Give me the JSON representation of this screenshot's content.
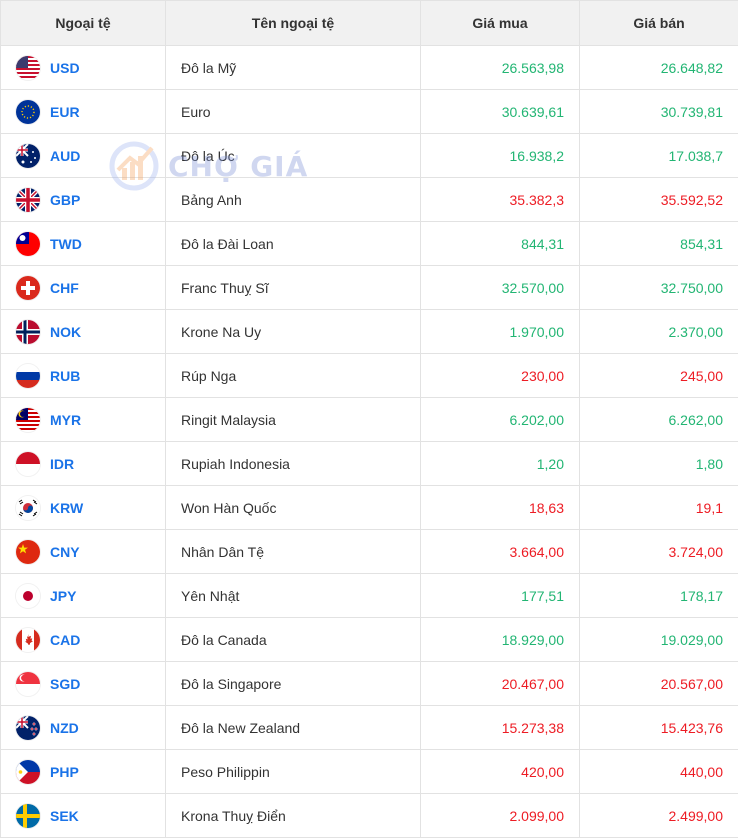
{
  "headers": {
    "code": "Ngoại tệ",
    "name": "Tên ngoại tệ",
    "buy": "Giá mua",
    "sell": "Giá bán"
  },
  "watermark": {
    "text": "CHỢ GIÁ"
  },
  "colors": {
    "up": "#22b573",
    "down": "#ed1c24",
    "link": "#1a73e8"
  },
  "rows": [
    {
      "code": "USD",
      "name": "Đô la Mỹ",
      "buy": "26.563,98",
      "sell": "26.648,82",
      "trend": "up",
      "flag": "us-flag-icon"
    },
    {
      "code": "EUR",
      "name": "Euro",
      "buy": "30.639,61",
      "sell": "30.739,81",
      "trend": "up",
      "flag": "eu-flag-icon"
    },
    {
      "code": "AUD",
      "name": "Đô la Úc",
      "buy": "16.938,2",
      "sell": "17.038,7",
      "trend": "up",
      "flag": "au-flag-icon"
    },
    {
      "code": "GBP",
      "name": "Bảng Anh",
      "buy": "35.382,3",
      "sell": "35.592,52",
      "trend": "down",
      "flag": "gb-flag-icon"
    },
    {
      "code": "TWD",
      "name": "Đô la Đài Loan",
      "buy": "844,31",
      "sell": "854,31",
      "trend": "up",
      "flag": "tw-flag-icon"
    },
    {
      "code": "CHF",
      "name": "Franc Thuỵ Sĩ",
      "buy": "32.570,00",
      "sell": "32.750,00",
      "trend": "up",
      "flag": "ch-flag-icon"
    },
    {
      "code": "NOK",
      "name": "Krone Na Uy",
      "buy": "1.970,00",
      "sell": "2.370,00",
      "trend": "up",
      "flag": "no-flag-icon"
    },
    {
      "code": "RUB",
      "name": "Rúp Nga",
      "buy": "230,00",
      "sell": "245,00",
      "trend": "down",
      "flag": "ru-flag-icon"
    },
    {
      "code": "MYR",
      "name": "Ringit Malaysia",
      "buy": "6.202,00",
      "sell": "6.262,00",
      "trend": "up",
      "flag": "my-flag-icon"
    },
    {
      "code": "IDR",
      "name": "Rupiah Indonesia",
      "buy": "1,20",
      "sell": "1,80",
      "trend": "up",
      "flag": "id-flag-icon"
    },
    {
      "code": "KRW",
      "name": "Won Hàn Quốc",
      "buy": "18,63",
      "sell": "19,1",
      "trend": "down",
      "flag": "kr-flag-icon"
    },
    {
      "code": "CNY",
      "name": "Nhân Dân Tệ",
      "buy": "3.664,00",
      "sell": "3.724,00",
      "trend": "down",
      "flag": "cn-flag-icon"
    },
    {
      "code": "JPY",
      "name": "Yên Nhật",
      "buy": "177,51",
      "sell": "178,17",
      "trend": "up",
      "flag": "jp-flag-icon"
    },
    {
      "code": "CAD",
      "name": "Đô la Canada",
      "buy": "18.929,00",
      "sell": "19.029,00",
      "trend": "up",
      "flag": "ca-flag-icon"
    },
    {
      "code": "SGD",
      "name": "Đô la Singapore",
      "buy": "20.467,00",
      "sell": "20.567,00",
      "trend": "down",
      "flag": "sg-flag-icon"
    },
    {
      "code": "NZD",
      "name": "Đô la New Zealand",
      "buy": "15.273,38",
      "sell": "15.423,76",
      "trend": "down",
      "flag": "nz-flag-icon"
    },
    {
      "code": "PHP",
      "name": "Peso Philippin",
      "buy": "420,00",
      "sell": "440,00",
      "trend": "down",
      "flag": "ph-flag-icon"
    },
    {
      "code": "SEK",
      "name": "Krona Thuỵ Điển",
      "buy": "2.099,00",
      "sell": "2.499,00",
      "trend": "down",
      "flag": "se-flag-icon"
    }
  ]
}
